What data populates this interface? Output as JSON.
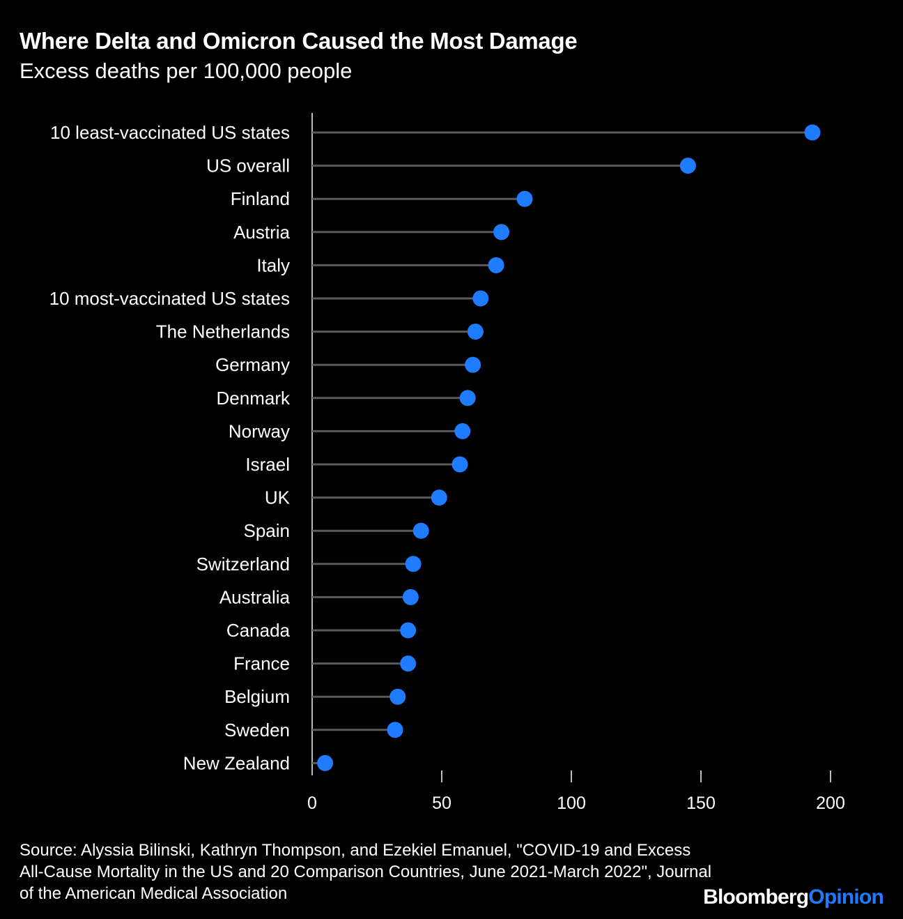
{
  "header": {
    "title": "Where Delta and Omicron Caused the Most Damage",
    "subtitle": "Excess deaths per 100,000 people"
  },
  "footer": {
    "source": "Source: Alyssia Bilinski, Kathryn Thompson, and Ezekiel Emanuel, \"COVID-19 and Excess All-Cause Mortality in the US and 20 Comparison Countries, June 2021-March 2022\", Journal of the American Medical Association",
    "brand_part1": "Bloomberg",
    "brand_part2": "Opinion"
  },
  "colors": {
    "background": "#000000",
    "dot": "#1f7bff",
    "stem": "#5a5a5a",
    "text": "#ffffff"
  },
  "chart_data": {
    "type": "lollipop",
    "orientation": "horizontal",
    "title": "Where Delta and Omicron Caused the Most Damage",
    "subtitle": "Excess deaths per 100,000 people",
    "xlim": [
      0,
      200
    ],
    "xticks": [
      0,
      50,
      100,
      150,
      200
    ],
    "grid": false,
    "categories": [
      "10 least-vaccinated US states",
      "US overall",
      "Finland",
      "Austria",
      "Italy",
      "10 most-vaccinated US states",
      "The Netherlands",
      "Germany",
      "Denmark",
      "Norway",
      "Israel",
      "UK",
      "Spain",
      "Switzerland",
      "Australia",
      "Canada",
      "France",
      "Belgium",
      "Sweden",
      "New Zealand"
    ],
    "values": [
      193,
      145,
      82,
      73,
      71,
      65,
      63,
      62,
      60,
      58,
      57,
      49,
      42,
      39,
      38,
      37,
      37,
      33,
      32,
      5
    ]
  }
}
